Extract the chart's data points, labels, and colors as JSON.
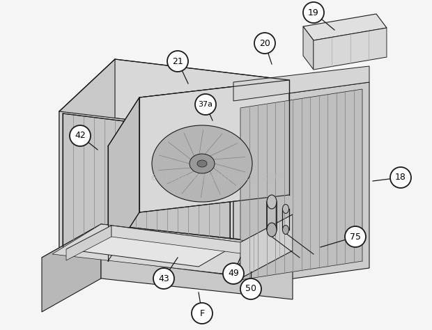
{
  "bg_color": "#f5f5f5",
  "watermark": "eReplacementParts.com",
  "watermark_color": "#bbbbbb",
  "watermark_fontsize": 11,
  "line_color": "#1a1a1a",
  "fill_light": "#e8e8e8",
  "fill_mid": "#d0d0d0",
  "fill_dark": "#b8b8b8",
  "fill_coil": "#c8c8c8",
  "fill_box": "#e0e0e0"
}
